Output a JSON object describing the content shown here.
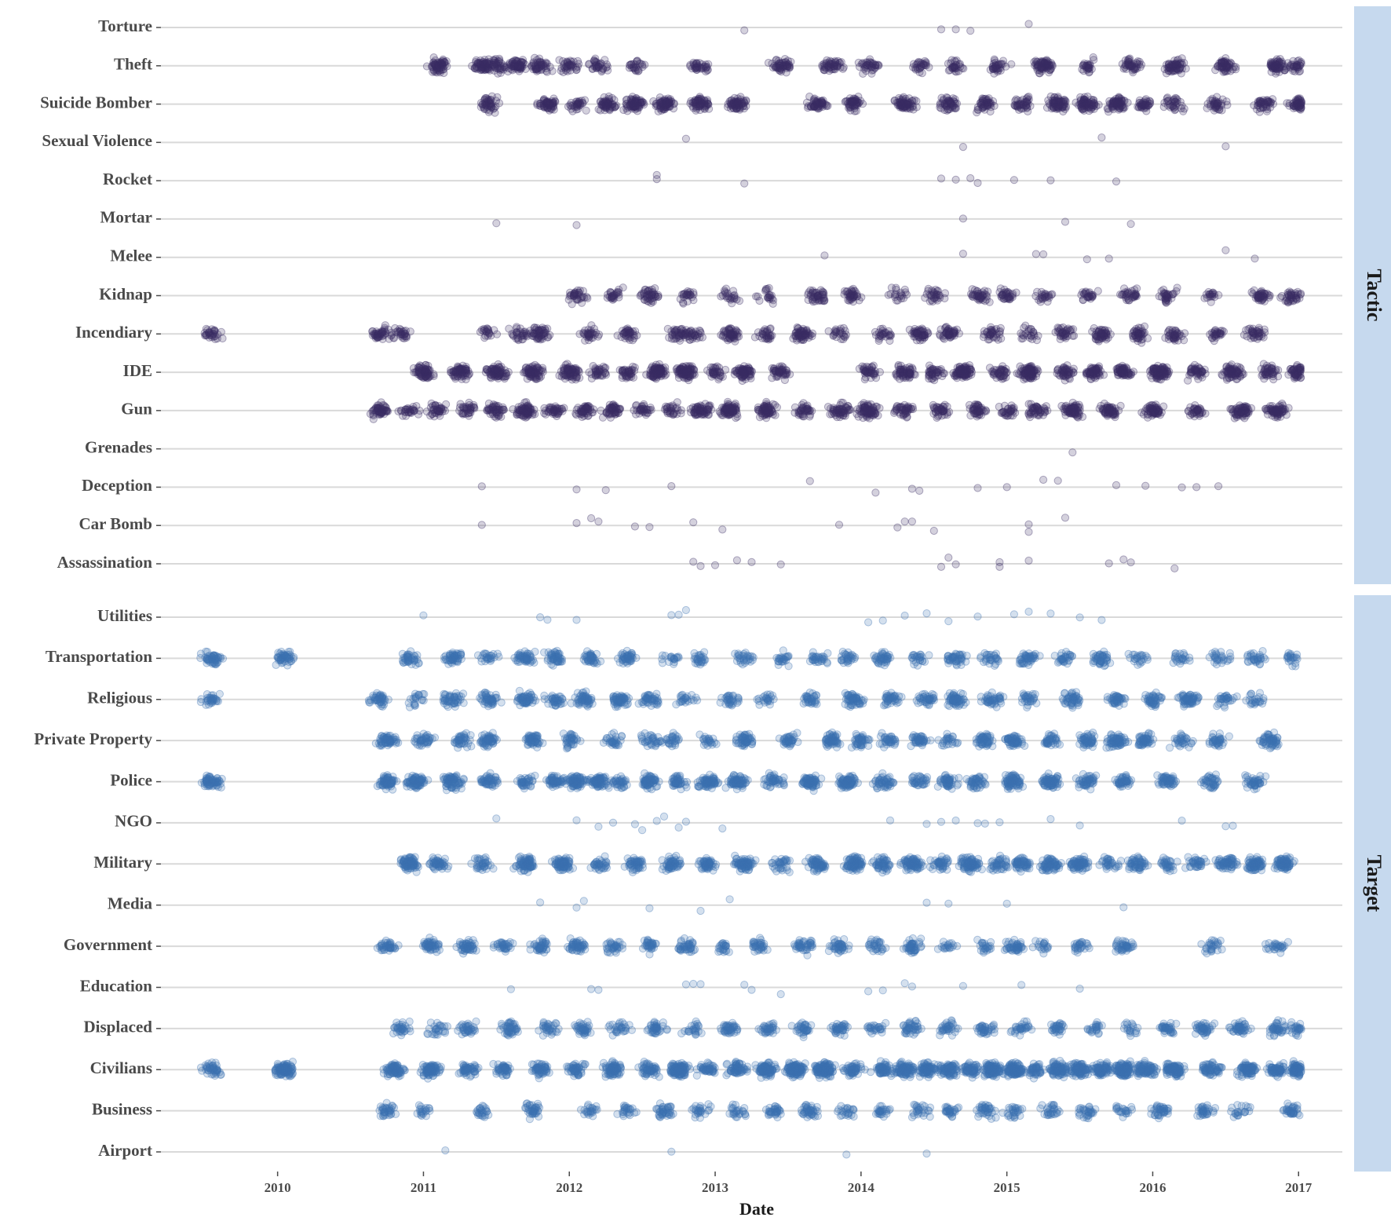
{
  "chart_data": {
    "type": "scatter",
    "variant": "jittered strip plot, faceted",
    "xlabel": "Date",
    "x_ticks": [
      "2010",
      "2011",
      "2012",
      "2013",
      "2014",
      "2015",
      "2016",
      "2017"
    ],
    "xlim": [
      2009.2,
      2017.3
    ],
    "grid": "horizontal only",
    "colors": {
      "Tactic": "#3b2d63",
      "Target": "#3d72b0",
      "strip_fill": "#c6d9ee"
    },
    "facets": [
      {
        "name": "Tactic",
        "categories": [
          "Torture",
          "Theft",
          "Suicide Bomber",
          "Sexual Violence",
          "Rocket",
          "Mortar",
          "Melee",
          "Kidnap",
          "Incendiary",
          "IDE",
          "Gun",
          "Grenades",
          "Deception",
          "Car Bomb",
          "Assassination"
        ],
        "points": {
          "Torture": [
            2013.2,
            2014.55,
            2014.65,
            2014.75,
            2015.15
          ],
          "Theft": [
            [
              2011.1,
              2011.4,
              2011.5,
              2011.65,
              2011.8,
              2012.0,
              2012.2,
              2012.45,
              2012.9,
              2013.45,
              2013.8,
              2014.05,
              2014.4,
              2014.65,
              2014.95,
              2015.25,
              2015.55,
              2015.85,
              2016.15,
              2016.5,
              2016.85,
              2017.0
            ],
            50
          ],
          "Suicide Bomber": [
            [
              2011.45,
              2011.85,
              2012.05,
              2012.25,
              2012.45,
              2012.65,
              2012.9,
              2013.15,
              2013.7,
              2013.95,
              2014.3,
              2014.6,
              2014.85,
              2015.1,
              2015.35,
              2015.55,
              2015.75,
              2015.95,
              2016.15,
              2016.45,
              2016.75,
              2017.0
            ],
            55
          ],
          "Sexual Violence": [
            2012.8,
            2014.7,
            2015.65,
            2016.5
          ],
          "Rocket": [
            2012.6,
            2012.6,
            2013.2,
            2014.55,
            2014.65,
            2014.75,
            2014.8,
            2015.05,
            2015.3,
            2015.75
          ],
          "Mortar": [
            2011.5,
            2012.05,
            2014.7,
            2015.4,
            2015.85
          ],
          "Melee": [
            2013.75,
            2014.7,
            2015.2,
            2015.25,
            2015.55,
            2015.7,
            2016.5,
            2016.7
          ],
          "Kidnap": [
            [
              2012.05,
              2012.3,
              2012.55,
              2012.8,
              2013.1,
              2013.35,
              2013.7,
              2013.95,
              2014.25,
              2014.5,
              2014.8,
              2015.0,
              2015.25,
              2015.55,
              2015.85,
              2016.1,
              2016.4,
              2016.75,
              2016.95
            ],
            30
          ],
          "Incendiary": [
            [
              2009.55,
              2010.7,
              2010.85,
              2011.45,
              2011.65,
              2011.8,
              2012.15,
              2012.4,
              2012.75,
              2012.85,
              2013.1,
              2013.35,
              2013.6,
              2013.85,
              2014.15,
              2014.4,
              2014.6,
              2014.9,
              2015.15,
              2015.4,
              2015.65,
              2015.9,
              2016.15,
              2016.45,
              2016.7
            ],
            38
          ],
          "IDE": [
            [
              2011.0,
              2011.25,
              2011.5,
              2011.75,
              2012.0,
              2012.2,
              2012.4,
              2012.6,
              2012.8,
              2013.0,
              2013.2,
              2013.45,
              2014.05,
              2014.3,
              2014.5,
              2014.7,
              2014.95,
              2015.15,
              2015.4,
              2015.6,
              2015.8,
              2016.05,
              2016.3,
              2016.55,
              2016.8,
              2017.0
            ],
            62
          ],
          "Gun": [
            [
              2010.7,
              2010.9,
              2011.1,
              2011.3,
              2011.5,
              2011.7,
              2011.9,
              2012.1,
              2012.3,
              2012.5,
              2012.7,
              2012.9,
              2013.1,
              2013.35,
              2013.6,
              2013.85,
              2014.05,
              2014.3,
              2014.55,
              2014.8,
              2015.0,
              2015.2,
              2015.45,
              2015.7,
              2016.0,
              2016.3,
              2016.6,
              2016.85
            ],
            55
          ],
          "Grenades": [
            2015.45
          ],
          "Deception": [
            2011.4,
            2012.05,
            2012.25,
            2012.7,
            2013.65,
            2014.1,
            2014.35,
            2014.4,
            2014.8,
            2015.0,
            2015.25,
            2015.35,
            2015.75,
            2015.95,
            2016.2,
            2016.3,
            2016.45
          ],
          "Car Bomb": [
            2011.4,
            2012.05,
            2012.15,
            2012.2,
            2012.45,
            2012.55,
            2012.85,
            2013.05,
            2013.85,
            2014.25,
            2014.3,
            2014.35,
            2014.5,
            2015.15,
            2015.15,
            2015.4
          ],
          "Assassination": [
            2012.85,
            2012.9,
            2013.0,
            2013.15,
            2013.25,
            2013.45,
            2014.55,
            2014.6,
            2014.65,
            2014.95,
            2014.95,
            2015.15,
            2015.7,
            2015.8,
            2015.85,
            2016.15
          ]
        }
      },
      {
        "name": "Target",
        "categories": [
          "Utilities",
          "Transportation",
          "Religious",
          "Private Property",
          "Police",
          "NGO",
          "Military",
          "Media",
          "Government",
          "Education",
          "Displaced",
          "Civilians",
          "Business",
          "Airport"
        ],
        "points": {
          "Utilities": [
            2011.0,
            2011.8,
            2011.85,
            2012.05,
            2012.7,
            2012.75,
            2012.8,
            2014.05,
            2014.15,
            2014.3,
            2014.45,
            2014.6,
            2014.8,
            2015.05,
            2015.15,
            2015.3,
            2015.5,
            2015.65
          ],
          "Transportation": [
            [
              2009.55,
              2010.05,
              2010.9,
              2011.2,
              2011.45,
              2011.7,
              2011.9,
              2012.15,
              2012.4,
              2012.7,
              2012.9,
              2013.2,
              2013.45,
              2013.7,
              2013.9,
              2014.15,
              2014.4,
              2014.65,
              2014.9,
              2015.15,
              2015.4,
              2015.65,
              2015.9,
              2016.2,
              2016.45,
              2016.7,
              2016.95
            ],
            34
          ],
          "Religious": [
            [
              2009.55,
              2010.7,
              2010.95,
              2011.2,
              2011.45,
              2011.7,
              2011.9,
              2012.1,
              2012.35,
              2012.55,
              2012.8,
              2013.1,
              2013.35,
              2013.65,
              2013.95,
              2014.2,
              2014.45,
              2014.65,
              2014.9,
              2015.15,
              2015.45,
              2015.75,
              2016.0,
              2016.25,
              2016.5,
              2016.7
            ],
            42
          ],
          "Private Property": [
            [
              2010.75,
              2011.0,
              2011.25,
              2011.45,
              2011.75,
              2012.0,
              2012.3,
              2012.55,
              2012.7,
              2012.95,
              2013.2,
              2013.5,
              2013.8,
              2014.0,
              2014.2,
              2014.4,
              2014.6,
              2014.85,
              2015.05,
              2015.3,
              2015.55,
              2015.75,
              2015.95,
              2016.2,
              2016.45,
              2016.8
            ],
            44
          ],
          "Police": [
            [
              2009.55,
              2010.75,
              2010.95,
              2011.2,
              2011.45,
              2011.7,
              2011.9,
              2012.05,
              2012.2,
              2012.35,
              2012.55,
              2012.75,
              2012.95,
              2013.15,
              2013.4,
              2013.65,
              2013.9,
              2014.15,
              2014.4,
              2014.6,
              2014.8,
              2015.05,
              2015.3,
              2015.55,
              2015.8,
              2016.1,
              2016.4,
              2016.7
            ],
            58
          ],
          "NGO": [
            2011.5,
            2012.05,
            2012.2,
            2012.3,
            2012.45,
            2012.5,
            2012.6,
            2012.65,
            2012.75,
            2012.8,
            2013.05,
            2014.2,
            2014.45,
            2014.55,
            2014.65,
            2014.8,
            2014.85,
            2014.95,
            2015.3,
            2015.5,
            2016.2,
            2016.5,
            2016.55
          ],
          "Military": [
            [
              2010.9,
              2011.1,
              2011.4,
              2011.7,
              2011.95,
              2012.2,
              2012.45,
              2012.7,
              2012.95,
              2013.2,
              2013.45,
              2013.7,
              2013.95,
              2014.15,
              2014.35,
              2014.55,
              2014.75,
              2014.95,
              2015.1,
              2015.3,
              2015.5,
              2015.7,
              2015.9,
              2016.1,
              2016.3,
              2016.5,
              2016.7,
              2016.9
            ],
            60
          ],
          "Media": [
            2011.8,
            2012.05,
            2012.1,
            2012.55,
            2012.9,
            2013.1,
            2014.45,
            2014.6,
            2015.0,
            2015.8
          ],
          "Government": [
            [
              2010.75,
              2011.05,
              2011.3,
              2011.55,
              2011.8,
              2012.05,
              2012.3,
              2012.55,
              2012.8,
              2013.05,
              2013.3,
              2013.6,
              2013.85,
              2014.1,
              2014.35,
              2014.6,
              2014.85,
              2015.05,
              2015.25,
              2015.5,
              2015.8,
              2016.4,
              2016.85
            ],
            36
          ],
          "Education": [
            2011.6,
            2012.15,
            2012.2,
            2012.8,
            2012.85,
            2012.9,
            2013.2,
            2013.25,
            2013.45,
            2014.05,
            2014.15,
            2014.3,
            2014.35,
            2014.7,
            2015.1,
            2015.5
          ],
          "Displaced": [
            [
              2010.85,
              2011.1,
              2011.3,
              2011.6,
              2011.85,
              2012.1,
              2012.35,
              2012.6,
              2012.85,
              2013.1,
              2013.35,
              2013.6,
              2013.85,
              2014.1,
              2014.35,
              2014.6,
              2014.85,
              2015.1,
              2015.35,
              2015.6,
              2015.85,
              2016.1,
              2016.35,
              2016.6,
              2016.85,
              2017.0
            ],
            30
          ],
          "Civilians": [
            [
              2009.55,
              2010.05,
              2010.8,
              2011.05,
              2011.3,
              2011.55,
              2011.8,
              2012.05,
              2012.3,
              2012.55,
              2012.75,
              2012.95,
              2013.15,
              2013.35,
              2013.55,
              2013.75,
              2013.95,
              2014.15,
              2014.3,
              2014.45,
              2014.6,
              2014.75,
              2014.9,
              2015.05,
              2015.2,
              2015.35,
              2015.5,
              2015.65,
              2015.8,
              2015.95,
              2016.15,
              2016.4,
              2016.65,
              2016.85,
              2017.0
            ],
            85
          ],
          "Business": [
            [
              2010.75,
              2011.0,
              2011.4,
              2011.75,
              2012.15,
              2012.4,
              2012.65,
              2012.9,
              2013.15,
              2013.4,
              2013.65,
              2013.9,
              2014.15,
              2014.4,
              2014.6,
              2014.85,
              2015.05,
              2015.3,
              2015.55,
              2015.8,
              2016.05,
              2016.35,
              2016.6,
              2016.95
            ],
            28
          ],
          "Airport": [
            2011.15,
            2012.7,
            2013.9,
            2014.45
          ]
        }
      }
    ]
  }
}
